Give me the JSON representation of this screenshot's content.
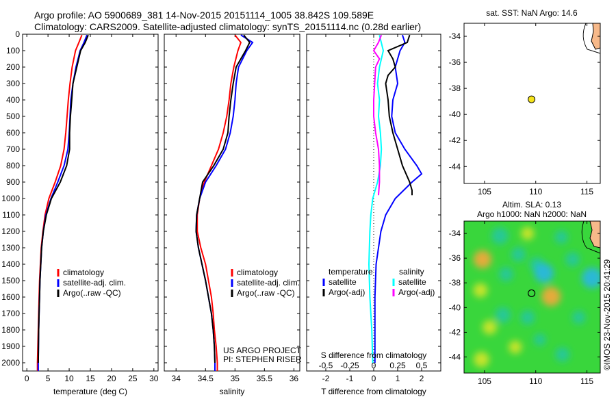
{
  "header": {
    "title_line1": "Argo profile: AO 5900689_381 14-Nov-2015 20151114_1005 38.842S 109.589E",
    "title_line2": "Climatology: CARS2009. Satellite-adjusted climatology: synTS_20151114.nc (0.28d earlier)"
  },
  "colors": {
    "climatology": "#ff0000",
    "satellite": "#0000ff",
    "argo": "#000000",
    "satellite_salinity": "#00ffff",
    "argo_salinity": "#ff00ff",
    "land": "#f7b98a",
    "float_marker": "#f5e31a"
  },
  "chart_data": [
    {
      "type": "line",
      "panel": "temperature",
      "xlabel": "temperature (deg C)",
      "xlim": [
        -1,
        31
      ],
      "xticks": [
        "0",
        "5",
        "10",
        "15",
        "20",
        "25",
        "30"
      ],
      "ylim": [
        2050,
        0
      ],
      "yticks": [
        "0",
        "100",
        "200",
        "300",
        "400",
        "500",
        "600",
        "700",
        "800",
        "900",
        "1000",
        "1100",
        "1200",
        "1300",
        "1400",
        "1500",
        "1600",
        "1700",
        "1800",
        "1900",
        "2000"
      ],
      "legend_placement": "middle-left",
      "series": [
        {
          "name": "climatology",
          "color": "#ff0000",
          "depth": [
            5,
            50,
            100,
            200,
            300,
            400,
            500,
            600,
            700,
            800,
            900,
            1000,
            1100,
            1200,
            1300,
            1400,
            1500,
            1600,
            1700,
            1800,
            1900,
            2000,
            2050
          ],
          "values": [
            13.0,
            12.3,
            11.5,
            10.7,
            10.2,
            9.8,
            9.5,
            9.2,
            8.8,
            8.0,
            6.7,
            5.2,
            4.3,
            3.8,
            3.4,
            3.2,
            3.0,
            2.9,
            2.8,
            2.7,
            2.6,
            2.5,
            2.5
          ]
        },
        {
          "name": "satellite-adj. clim.",
          "color": "#0000ff",
          "depth": [
            5,
            50,
            100,
            200,
            300,
            400,
            500,
            600,
            700,
            800,
            900,
            1000,
            1100,
            1200,
            1300,
            1400,
            1500,
            1600,
            1700,
            1800,
            1900,
            2000,
            2050
          ],
          "values": [
            14.2,
            13.5,
            12.6,
            11.6,
            10.9,
            10.4,
            10.2,
            10.0,
            9.7,
            8.8,
            7.3,
            5.7,
            4.5,
            3.9,
            3.5,
            3.3,
            3.1,
            3.0,
            2.9,
            2.8,
            2.75,
            2.7,
            2.7
          ]
        },
        {
          "name": "Argo(..raw -QC)",
          "color": "#000000",
          "depth": [
            5,
            50,
            100,
            200,
            300,
            400,
            500,
            600,
            700,
            800,
            900,
            1000,
            1100,
            1200,
            1300,
            1400,
            1500,
            1600,
            1700,
            1800,
            1900,
            2000
          ],
          "values": [
            14.5,
            13.8,
            12.7,
            11.8,
            10.9,
            10.6,
            10.3,
            10.1,
            10.1,
            9.4,
            7.9,
            5.8,
            4.6,
            3.9,
            3.5,
            3.3,
            3.1,
            3.0,
            2.9,
            2.8,
            2.75,
            2.7
          ]
        }
      ],
      "legend": [
        "climatology",
        "satellite-adj. clim.",
        "Argo(..raw -QC)"
      ]
    },
    {
      "type": "line",
      "panel": "salinity",
      "xlabel": "salinity",
      "xlim": [
        33.8,
        36.1
      ],
      "xticks": [
        "34",
        "34.5",
        "35",
        "35.5",
        "36"
      ],
      "ylim": [
        2050,
        0
      ],
      "legend_placement": "middle-right",
      "series": [
        {
          "name": "climatology",
          "color": "#ff0000",
          "depth": [
            5,
            50,
            100,
            200,
            300,
            400,
            500,
            600,
            700,
            800,
            900,
            1000,
            1100,
            1200,
            1300,
            1400,
            1500,
            1600,
            1700,
            1800,
            1900,
            2000,
            2050
          ],
          "values": [
            35.0,
            35.1,
            35.05,
            34.98,
            34.93,
            34.9,
            34.86,
            34.8,
            34.72,
            34.6,
            34.48,
            34.4,
            34.36,
            34.36,
            34.42,
            34.5,
            34.55,
            34.6,
            34.63,
            34.65,
            34.68,
            34.7,
            34.7
          ]
        },
        {
          "name": "satellite-adj. clim.",
          "color": "#0000ff",
          "depth": [
            5,
            50,
            100,
            200,
            300,
            400,
            500,
            600,
            700,
            800,
            900,
            1000,
            1100,
            1200,
            1300,
            1400,
            1500,
            1600,
            1700,
            1800,
            1900,
            2000,
            2050
          ],
          "values": [
            35.1,
            35.3,
            35.2,
            35.06,
            35.02,
            35.0,
            34.97,
            34.92,
            34.84,
            34.68,
            34.5,
            34.4,
            34.35,
            34.34,
            34.38,
            34.44,
            34.5,
            34.55,
            34.6,
            34.63,
            34.65,
            34.66,
            34.66
          ]
        },
        {
          "name": "Argo(..raw -QC)",
          "color": "#000000",
          "depth": [
            5,
            50,
            100,
            200,
            300,
            400,
            500,
            600,
            700,
            800,
            900,
            1000,
            1100,
            1200,
            1300,
            1400,
            1500,
            1600,
            1700,
            1800,
            1900,
            2000
          ],
          "values": [
            35.15,
            35.25,
            35.18,
            35.02,
            34.97,
            34.93,
            34.9,
            34.88,
            34.8,
            34.64,
            34.45,
            34.4,
            34.35,
            34.34,
            34.38,
            34.44,
            34.5,
            34.55,
            34.6,
            34.63,
            34.65,
            34.66
          ]
        }
      ],
      "legend": [
        "climatology",
        "satellite-adj. clim.",
        "Argo(..raw -QC)"
      ],
      "annotation_line1": "US ARGO PROJECT",
      "annotation_line2": "PI: STEPHEN RISER"
    },
    {
      "type": "line",
      "panel": "difference",
      "xlabel": "T difference from climatology",
      "xlim": [
        -2.8,
        2.8
      ],
      "xticks": [
        "-2",
        "-1",
        "0",
        "1",
        "2"
      ],
      "top_axis_label": "S difference from climatology",
      "top_xlim": [
        -0.7,
        0.7
      ],
      "top_xticks": [
        "-0.5",
        "-0.25",
        "0",
        "0.25",
        "0.5"
      ],
      "ylim": [
        2050,
        0
      ],
      "legend_placement": "middle",
      "series": [
        {
          "name": "temperature satellite",
          "color": "#0000ff",
          "depth": [
            5,
            50,
            100,
            200,
            300,
            400,
            500,
            600,
            700,
            800,
            850,
            900,
            1000,
            1100,
            1200,
            1300,
            1400,
            1600,
            1800,
            2000
          ],
          "values": [
            1.2,
            1.3,
            1.1,
            0.9,
            1.0,
            0.8,
            0.75,
            0.9,
            1.3,
            1.8,
            2.0,
            1.6,
            0.9,
            0.5,
            0.3,
            0.2,
            0.1,
            0.05,
            0.05,
            0.05
          ]
        },
        {
          "name": "temperature Argo(-adj)",
          "color": "#000000",
          "depth": [
            5,
            50,
            100,
            150,
            200,
            250,
            300,
            400,
            500,
            600,
            700,
            800,
            900,
            950,
            980
          ],
          "values": [
            1.5,
            1.4,
            0.6,
            0.8,
            0.9,
            0.6,
            0.5,
            0.6,
            0.65,
            0.8,
            1.0,
            1.2,
            1.5,
            1.6,
            1.6
          ]
        },
        {
          "name": "salinity satellite",
          "color": "#00ffff",
          "depth": [
            5,
            100,
            200,
            300,
            400,
            500,
            600,
            700,
            800,
            900,
            1000,
            1100,
            1200,
            1400,
            1600,
            1800,
            2000
          ],
          "values": [
            0.06,
            0.1,
            0.06,
            0.04,
            0.06,
            0.05,
            0.07,
            0.08,
            0.07,
            0.04,
            -0.01,
            -0.03,
            -0.04,
            -0.05,
            -0.04,
            -0.02,
            -0.01
          ]
        },
        {
          "name": "salinity Argo(-adj)",
          "color": "#ff00ff",
          "depth": [
            5,
            50,
            100,
            150,
            200,
            300,
            400,
            500,
            600,
            700,
            800,
            900,
            980
          ],
          "values": [
            0.08,
            0.05,
            0.0,
            0.06,
            0.02,
            0.01,
            0.0,
            0.0,
            0.02,
            0.05,
            0.06,
            0.06,
            0.05
          ]
        }
      ],
      "legend_temperature_title": "temperature",
      "legend_salinity_title": "salinity",
      "legend_temperature": [
        "satellite",
        "Argo(-adj)"
      ],
      "legend_salinity": [
        "satellite",
        "Argo(-adj)"
      ]
    },
    {
      "type": "scatter",
      "panel": "map_sst",
      "title": "sat. SST: NaN Argo: 14.6",
      "xlim": [
        103,
        116.3
      ],
      "ylim": [
        -45.3,
        -33
      ],
      "xticks": [
        "105",
        "110",
        "115"
      ],
      "yticks": [
        "-34",
        "-36",
        "-38",
        "-40",
        "-42",
        "-44"
      ],
      "points": [
        {
          "lon": 109.589,
          "lat": -38.842
        }
      ]
    },
    {
      "type": "heatmap",
      "panel": "map_sla",
      "title_line1": "Altim. SLA: 0.13",
      "title_line2": "Argo h1000: NaN h2000: NaN",
      "xlim": [
        103,
        116.3
      ],
      "ylim": [
        -45.3,
        -33
      ],
      "xticks": [
        "105",
        "110",
        "115"
      ],
      "yticks": [
        "-34",
        "-36",
        "-38",
        "-40",
        "-42",
        "-44"
      ],
      "points": [
        {
          "lon": 109.589,
          "lat": -38.842
        }
      ],
      "colormap": {
        "background": "#39d63c",
        "low": "#22c6a0",
        "lower": "#27b6e6",
        "high": "#d6e62a",
        "higher": "#f7a63a"
      },
      "features": [
        {
          "lon": 104.8,
          "lat": -36.1,
          "value": 0.8
        },
        {
          "lon": 104.6,
          "lat": -38.6,
          "value": 0.5
        },
        {
          "lon": 105.5,
          "lat": -41.6,
          "value": 0.5
        },
        {
          "lon": 106.5,
          "lat": -34.2,
          "value": -0.7
        },
        {
          "lon": 107.1,
          "lat": -37.3,
          "value": -0.5
        },
        {
          "lon": 106.8,
          "lat": -40.6,
          "value": -0.6
        },
        {
          "lon": 108.3,
          "lat": -35.7,
          "value": -0.5
        },
        {
          "lon": 109.2,
          "lat": -34.0,
          "value": 0.4
        },
        {
          "lon": 110.1,
          "lat": -36.5,
          "value": -0.5
        },
        {
          "lon": 110.8,
          "lat": -37.2,
          "value": -0.9
        },
        {
          "lon": 111.5,
          "lat": -39.1,
          "value": 0.9
        },
        {
          "lon": 113.6,
          "lat": -36.1,
          "value": -0.5
        },
        {
          "lon": 112.5,
          "lat": -34.3,
          "value": -0.4
        },
        {
          "lon": 115.5,
          "lat": -37.6,
          "value": -1.0
        },
        {
          "lon": 109.2,
          "lat": -40.8,
          "value": -0.5
        },
        {
          "lon": 112.6,
          "lat": -43.8,
          "value": -0.5
        },
        {
          "lon": 104.7,
          "lat": -44.2,
          "value": 0.6
        },
        {
          "lon": 108.0,
          "lat": -43.2,
          "value": 0.4
        },
        {
          "lon": 114.2,
          "lat": -40.8,
          "value": -0.4
        },
        {
          "lon": 110.4,
          "lat": -42.6,
          "value": -0.3
        }
      ],
      "watermark": "©IMOS 23-Nov-2015 20:41:29"
    }
  ]
}
